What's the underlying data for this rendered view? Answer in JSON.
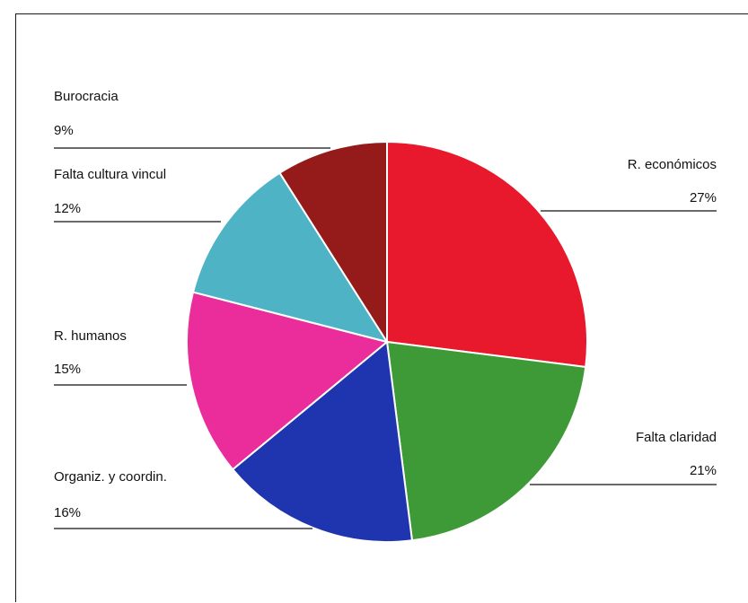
{
  "chart_data": {
    "type": "pie",
    "slices": [
      {
        "label": "R. económicos",
        "value": 27,
        "value_label": "27%",
        "color": "#e8192c"
      },
      {
        "label": "Falta claridad",
        "value": 21,
        "value_label": "21%",
        "color": "#3e9a36"
      },
      {
        "label": "Organiz. y coordin.",
        "value": 16,
        "value_label": "16%",
        "color": "#1f35b0"
      },
      {
        "label": "R. humanos",
        "value": 15,
        "value_label": "15%",
        "color": "#ea2d9a"
      },
      {
        "label": "Falta cultura vincul",
        "value": 12,
        "value_label": "12%",
        "color": "#4fb3c6"
      },
      {
        "label": "Burocracia",
        "value": 9,
        "value_label": "9%",
        "color": "#951b1b"
      }
    ],
    "legend": "none",
    "labels": "outside with leader lines"
  }
}
